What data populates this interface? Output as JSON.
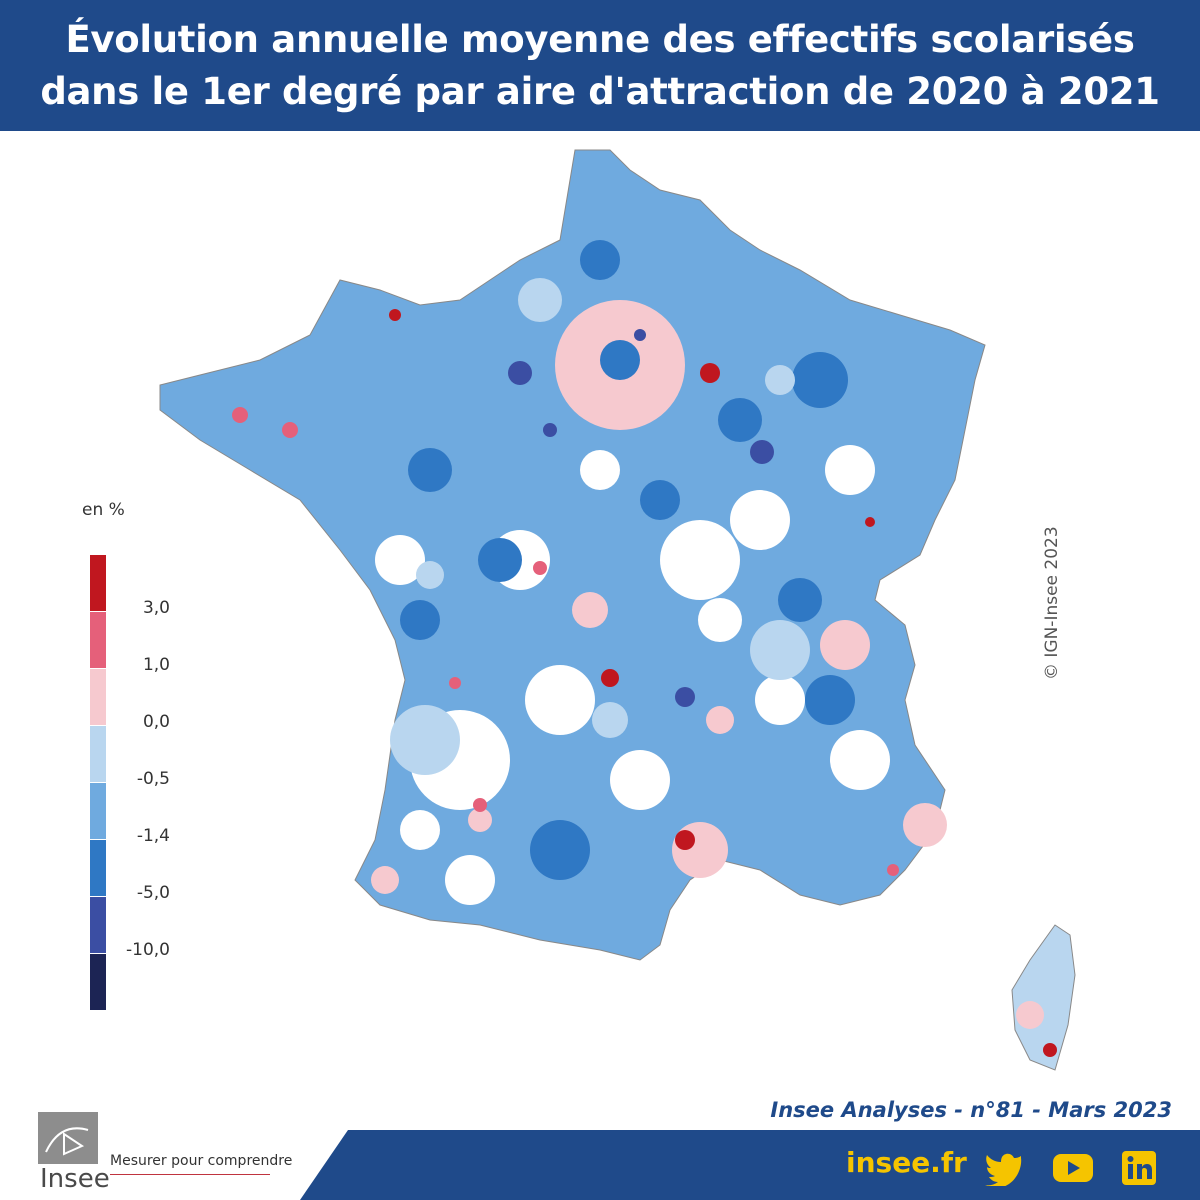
{
  "header": {
    "title": "Évolution annuelle moyenne des effectifs scolarisés dans le 1er degré par aire d'attraction de 2020 à 2021"
  },
  "legend": {
    "unit": "en %",
    "classes": [
      {
        "color": "#c0171f",
        "label": "3,0"
      },
      {
        "color": "#e5607a",
        "label": "1,0"
      },
      {
        "color": "#f6c9cf",
        "label": "0,0"
      },
      {
        "color": "#b9d6ef",
        "label": "-0,5"
      },
      {
        "color": "#6faadf",
        "label": "-1,4"
      },
      {
        "color": "#2f78c4",
        "label": "-5,0"
      },
      {
        "color": "#3b4ea3",
        "label": "-10,0"
      },
      {
        "color": "#1c2454",
        "label": ""
      }
    ]
  },
  "map": {
    "copyright": "© IGN-Insee 2023"
  },
  "footer": {
    "source": "Insee Analyses - n°81 - Mars 2023",
    "site": "insee.fr",
    "logo_text": "Insee",
    "tagline": "Mesurer pour comprendre",
    "social_icons": [
      "twitter-icon",
      "youtube-icon",
      "linkedin-icon"
    ]
  },
  "colors": {
    "brand_blue": "#1f4a8a",
    "accent_yellow": "#f5c400"
  }
}
